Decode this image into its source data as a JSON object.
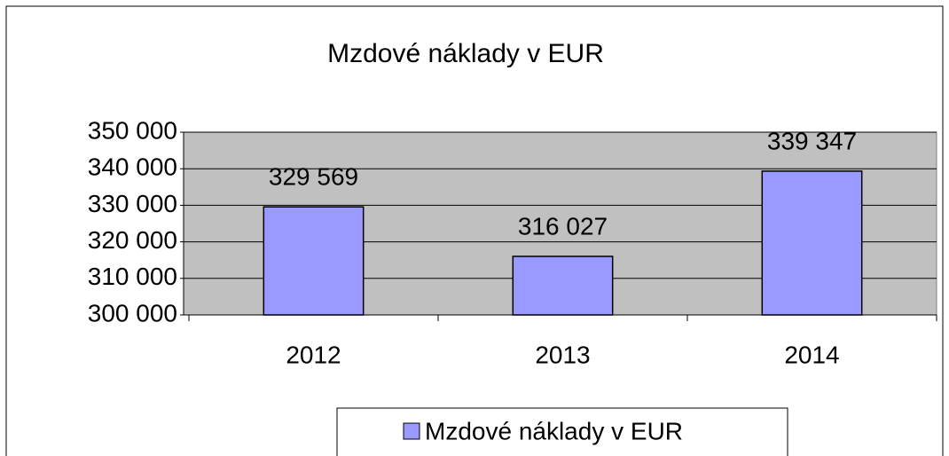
{
  "chart_data": {
    "type": "bar",
    "title": "Mzdové náklady v EUR",
    "categories": [
      "2012",
      "2013",
      "2014"
    ],
    "series": [
      {
        "name": "Mzdové náklady v EUR",
        "color": "#9999ff",
        "values": [
          329569,
          316027,
          339347
        ],
        "value_labels": [
          "329 569",
          "316 027",
          "339 347"
        ]
      }
    ],
    "ylim": [
      300000,
      350000
    ],
    "yticks": [
      {
        "value": 300000,
        "label": "300 000"
      },
      {
        "value": 310000,
        "label": "310 000"
      },
      {
        "value": 320000,
        "label": "320 000"
      },
      {
        "value": 330000,
        "label": "330 000"
      },
      {
        "value": 340000,
        "label": "340 000"
      },
      {
        "value": 350000,
        "label": "350 000"
      }
    ],
    "grid": true,
    "legend": "bottom"
  }
}
